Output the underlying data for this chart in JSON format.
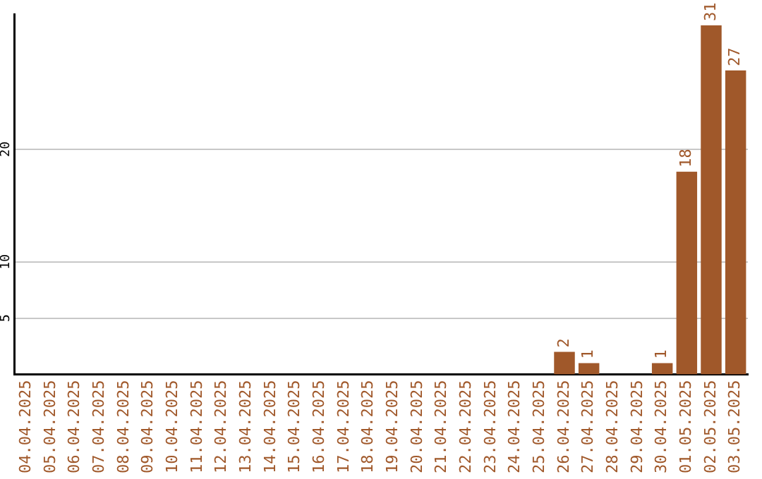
{
  "chart_data": {
    "type": "bar",
    "categories": [
      "04.04.2025",
      "05.04.2025",
      "06.04.2025",
      "07.04.2025",
      "08.04.2025",
      "09.04.2025",
      "10.04.2025",
      "11.04.2025",
      "12.04.2025",
      "13.04.2025",
      "14.04.2025",
      "15.04.2025",
      "16.04.2025",
      "17.04.2025",
      "18.04.2025",
      "19.04.2025",
      "20.04.2025",
      "21.04.2025",
      "22.04.2025",
      "23.04.2025",
      "24.04.2025",
      "25.04.2025",
      "26.04.2025",
      "27.04.2025",
      "28.04.2025",
      "29.04.2025",
      "30.04.2025",
      "01.05.2025",
      "02.05.2025",
      "03.05.2025"
    ],
    "values": [
      0,
      0,
      0,
      0,
      0,
      0,
      0,
      0,
      0,
      0,
      0,
      0,
      0,
      0,
      0,
      0,
      0,
      0,
      0,
      0,
      0,
      0,
      2,
      1,
      0,
      0,
      1,
      18,
      31,
      27
    ],
    "value_labels": [
      null,
      null,
      null,
      null,
      null,
      null,
      null,
      null,
      null,
      null,
      null,
      null,
      null,
      null,
      null,
      null,
      null,
      null,
      null,
      null,
      null,
      null,
      "2",
      "1",
      null,
      null,
      "1",
      "18",
      "31",
      "27"
    ],
    "color": "#a0582a",
    "ylim": [
      0,
      32
    ],
    "yticks": [
      5,
      10,
      20
    ],
    "grid": "y",
    "legend": false
  }
}
